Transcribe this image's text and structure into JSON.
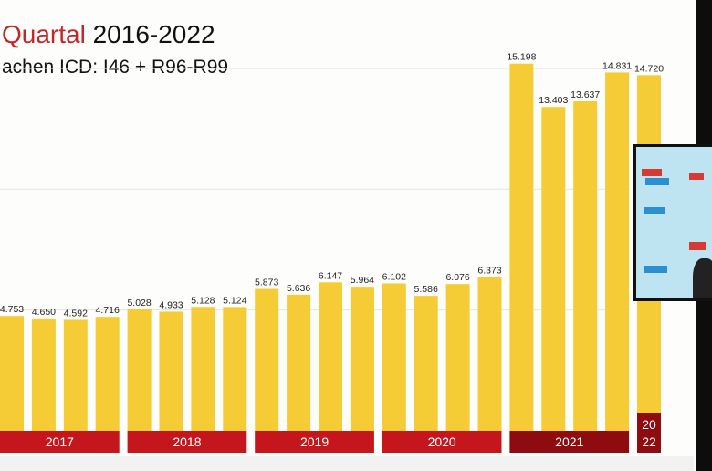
{
  "title": {
    "accent": "Quartal",
    "rest": "2016-2022"
  },
  "subtitle": "achen ICD: I46 + R96-R99",
  "colors": {
    "bar": "#f5cc35",
    "band": "#c5161d",
    "band_current": "#8e0c10",
    "grid": "#e4e4e4"
  },
  "chart_data": {
    "type": "bar",
    "title": "Quartal 2016-2022",
    "subtitle": "achen ICD: I46 + R96-R99",
    "ylim": [
      0,
      17000
    ],
    "grid": true,
    "values": [
      4753,
      4650,
      4592,
      4716,
      5028,
      4933,
      5128,
      5124,
      5873,
      5636,
      6147,
      5964,
      6102,
      5586,
      6076,
      6373,
      15198,
      13403,
      13637,
      14831,
      14720
    ],
    "data_labels": [
      "4.753",
      "4.650",
      "4.592",
      "4.716",
      "5.028",
      "4.933",
      "5.128",
      "5.124",
      "5.873",
      "5.636",
      "6.147",
      "5.964",
      "6.102",
      "5.586",
      "6.076",
      "6.373",
      "15.198",
      "13.403",
      "13.637",
      "14.831",
      "14.720"
    ],
    "year_groups": [
      {
        "label": "2017",
        "bars": 4
      },
      {
        "label": "2018",
        "bars": 4
      },
      {
        "label": "2019",
        "bars": 4
      },
      {
        "label": "2020",
        "bars": 4
      },
      {
        "label": "2021",
        "bars": 4
      },
      {
        "label_lines": [
          "20",
          "22"
        ],
        "bars": 1
      }
    ]
  }
}
